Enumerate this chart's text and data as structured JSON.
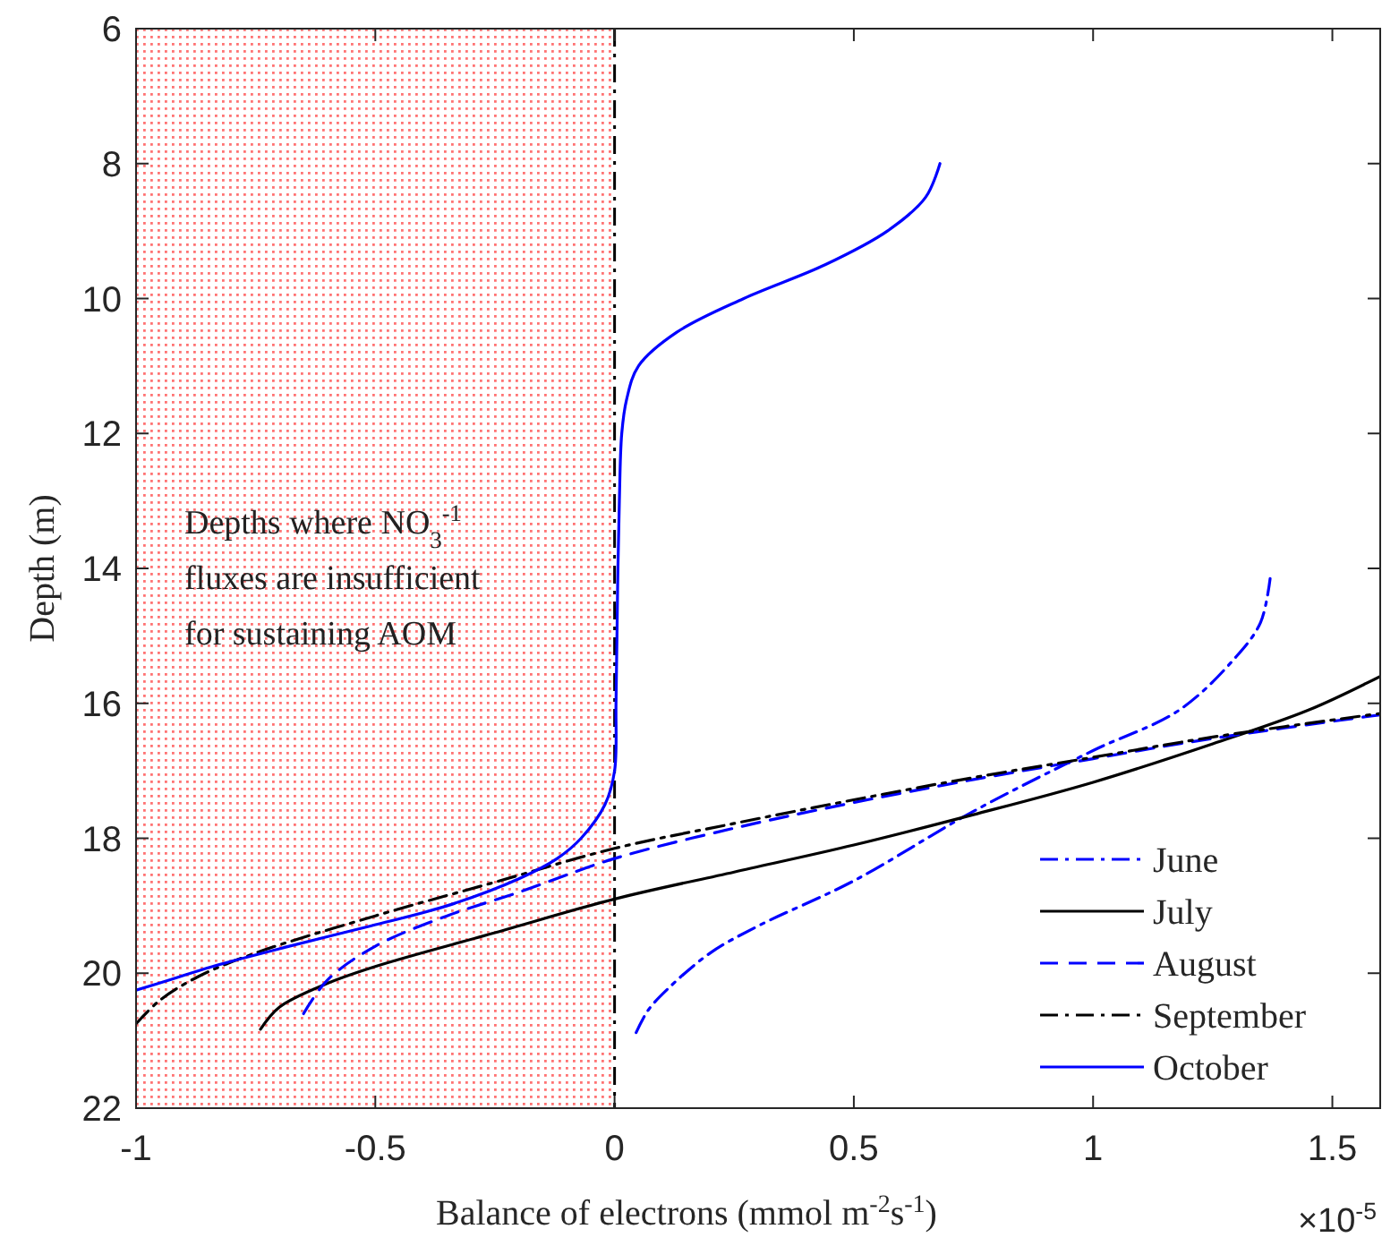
{
  "chart_data": {
    "type": "line",
    "xlabel": "Balance of electrons (mmol m$^{-2}$s$^{-1}$)",
    "ylabel": "Depth (m)",
    "xlim": [
      -1,
      1.6
    ],
    "xticks": [
      -1,
      -0.5,
      0,
      0.5,
      1,
      1.5
    ],
    "ylim": [
      22,
      6
    ],
    "yticks": [
      6,
      8,
      10,
      12,
      14,
      16,
      18,
      20,
      22
    ],
    "grid": false,
    "legend": "bottom right",
    "annotations": [
      "×10$^{-5}$"
    ],
    "bands": [
      {
        "axis": "x",
        "from": -1,
        "to": 0,
        "label": "Depths where NO$_{3}$$^{-1}$\nfluxes are insufficient\nfor sustaining AOM",
        "color": "#ff0000"
      }
    ],
    "ref_lines": [
      {
        "axis": "x",
        "value": 0,
        "color": "#000000",
        "line_style": "dashdot"
      }
    ],
    "series": [
      {
        "name": "June",
        "color": "#0000ff",
        "line_style": "dashdot",
        "x": [
          0.045,
          0.07,
          0.11,
          0.2,
          0.3,
          0.5,
          0.75,
          1.0,
          1.18,
          1.3,
          1.35,
          1.37
        ],
        "values": [
          20.88,
          20.55,
          20.24,
          19.7,
          19.3,
          18.63,
          17.6,
          16.7,
          16.1,
          15.3,
          14.8,
          14.15
        ]
      },
      {
        "name": "July",
        "color": "#000000",
        "line_style": "solid",
        "x": [
          -0.74,
          -0.7,
          -0.6,
          -0.5,
          -0.25,
          0,
          0.25,
          0.5,
          0.75,
          1.0,
          1.25,
          1.45,
          1.6
        ],
        "values": [
          20.83,
          20.5,
          20.15,
          19.9,
          19.4,
          18.9,
          18.5,
          18.1,
          17.65,
          17.17,
          16.6,
          16.1,
          15.6
        ]
      },
      {
        "name": "August",
        "color": "#0000ff",
        "line_style": "dashed",
        "x": [
          -0.65,
          -0.6,
          -0.5,
          -0.35,
          -0.2,
          0,
          0.25,
          0.5,
          0.75,
          1.0,
          1.25,
          1.6
        ],
        "values": [
          20.6,
          20.1,
          19.6,
          19.15,
          18.8,
          18.3,
          17.85,
          17.47,
          17.13,
          16.82,
          16.52,
          16.17
        ]
      },
      {
        "name": "September",
        "color": "#000000",
        "line_style": "dashdot",
        "x": [
          -1,
          -0.95,
          -0.87,
          -0.75,
          -0.5,
          -0.25,
          0,
          0.25,
          0.5,
          0.75,
          1.0,
          1.25,
          1.6
        ],
        "values": [
          20.75,
          20.4,
          20.05,
          19.7,
          19.15,
          18.65,
          18.15,
          17.78,
          17.43,
          17.1,
          16.8,
          16.5,
          16.15
        ]
      },
      {
        "name": "October",
        "color": "#0000ff",
        "line_style": "solid",
        "x": [
          0.68,
          0.65,
          0.57,
          0.44,
          0.27,
          0.13,
          0.05,
          0.025,
          0.015,
          0.01,
          0.007,
          0.005,
          0.003,
          0,
          -0.02,
          -0.07,
          -0.12,
          -0.2,
          -0.35,
          -0.51,
          -0.68,
          -0.84,
          -0.93,
          -1.0
        ],
        "values": [
          8.0,
          8.5,
          9,
          9.5,
          10,
          10.5,
          11,
          11.5,
          12,
          13,
          14,
          15,
          16,
          17,
          17.5,
          18,
          18.3,
          18.6,
          19,
          19.3,
          19.6,
          19.9,
          20.1,
          20.25
        ]
      }
    ]
  }
}
